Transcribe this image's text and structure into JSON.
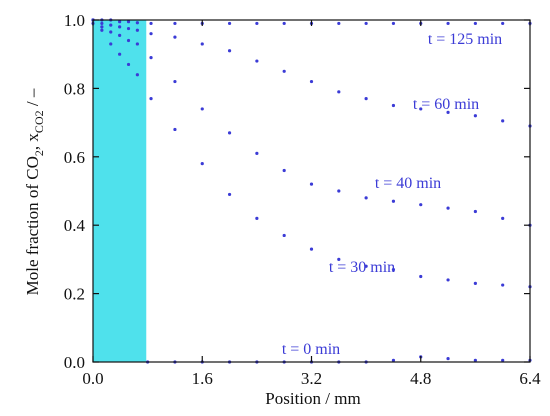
{
  "chart_data": {
    "type": "scatter",
    "title": "",
    "xlabel": "Position / mm",
    "ylabel_parts": {
      "prefix": "Mole fraction of CO",
      "sub1": "2",
      "middle": ", x",
      "sub2": "CO2",
      "suffix": " / –"
    },
    "xlim": [
      0.0,
      6.4
    ],
    "ylim": [
      0.0,
      1.0
    ],
    "x_ticks": [
      0.0,
      1.6,
      3.2,
      4.8,
      6.4
    ],
    "x_tick_labels": [
      "0.0",
      "1.6",
      "3.2",
      "4.8",
      "6.4"
    ],
    "y_ticks": [
      0.0,
      0.2,
      0.4,
      0.6,
      0.8,
      1.0
    ],
    "y_tick_labels": [
      "0.0",
      "0.2",
      "0.4",
      "0.6",
      "0.8",
      "1.0"
    ],
    "grid": false,
    "point_color": "#3b3bd6",
    "label_color": "#3b3bd6",
    "shaded_region": {
      "x": [
        0.0,
        0.78
      ],
      "y": [
        0.0,
        1.0
      ],
      "color": "#4fe1ec"
    },
    "series": [
      {
        "name": "t = 125 min",
        "x": [
          0.0,
          0.13,
          0.26,
          0.39,
          0.52,
          0.65,
          0.85,
          1.2,
          1.6,
          2.0,
          2.4,
          2.8,
          3.2,
          3.6,
          4.0,
          4.4,
          4.8,
          5.2,
          5.6,
          6.0,
          6.4
        ],
        "y": [
          1.0,
          1.0,
          1.0,
          0.995,
          0.995,
          0.992,
          0.99,
          0.99,
          0.99,
          0.99,
          0.99,
          0.99,
          0.99,
          0.99,
          0.99,
          0.99,
          0.99,
          0.99,
          0.99,
          0.99,
          0.99
        ]
      },
      {
        "name": "t = 60 min",
        "x": [
          0.0,
          0.13,
          0.26,
          0.39,
          0.52,
          0.65,
          0.85,
          1.2,
          1.6,
          2.0,
          2.4,
          2.8,
          3.2,
          3.6,
          4.0,
          4.4,
          4.8,
          5.2,
          5.6,
          6.0,
          6.4
        ],
        "y": [
          1.0,
          0.99,
          0.985,
          0.98,
          0.975,
          0.97,
          0.96,
          0.95,
          0.93,
          0.91,
          0.88,
          0.85,
          0.82,
          0.79,
          0.77,
          0.75,
          0.74,
          0.73,
          0.72,
          0.705,
          0.69
        ]
      },
      {
        "name": "t = 40 min",
        "x": [
          0.0,
          0.13,
          0.26,
          0.39,
          0.52,
          0.65,
          0.85,
          1.2,
          1.6,
          2.0,
          2.4,
          2.8,
          3.2,
          3.6,
          4.0,
          4.4,
          4.8,
          5.2,
          5.6,
          6.0,
          6.4
        ],
        "y": [
          1.0,
          0.98,
          0.965,
          0.955,
          0.94,
          0.93,
          0.89,
          0.82,
          0.74,
          0.67,
          0.61,
          0.56,
          0.52,
          0.5,
          0.48,
          0.47,
          0.46,
          0.45,
          0.44,
          0.42,
          0.4
        ]
      },
      {
        "name": "t = 30 min",
        "x": [
          0.0,
          0.13,
          0.26,
          0.39,
          0.52,
          0.65,
          0.85,
          1.2,
          1.6,
          2.0,
          2.4,
          2.8,
          3.2,
          3.6,
          4.0,
          4.4,
          4.8,
          5.2,
          5.6,
          6.0,
          6.4
        ],
        "y": [
          0.99,
          0.97,
          0.93,
          0.9,
          0.87,
          0.84,
          0.77,
          0.68,
          0.58,
          0.49,
          0.42,
          0.37,
          0.33,
          0.3,
          0.28,
          0.27,
          0.25,
          0.24,
          0.23,
          0.225,
          0.22
        ]
      },
      {
        "name": "t = 0 min",
        "x": [
          0.8,
          1.2,
          1.6,
          2.0,
          2.4,
          2.8,
          3.2,
          3.6,
          4.0,
          4.4,
          4.8,
          5.2,
          5.6,
          6.0,
          6.4
        ],
        "y": [
          0.0,
          0.0,
          0.0,
          0.0,
          0.0,
          0.0,
          0.0,
          0.0,
          0.0,
          0.005,
          0.015,
          0.01,
          0.005,
          0.005,
          0.005
        ]
      }
    ]
  }
}
